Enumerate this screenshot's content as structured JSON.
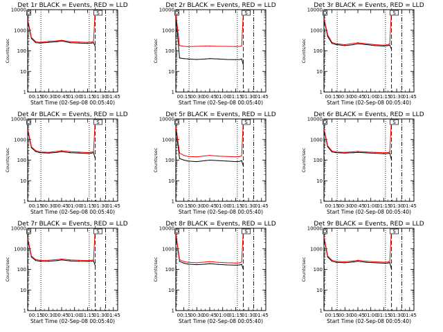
{
  "figure": {
    "x_axis_title": "Start Time (02-Sep-08 00:05:40)",
    "y_axis_title": "Counts/sec",
    "x_tick_labels": [
      "00:15",
      "00:30",
      "00:45",
      "01:00",
      "01:15",
      "01:30",
      "01:45"
    ],
    "y_tick_labels": [
      "1",
      "10",
      "100",
      "1000",
      "10000"
    ],
    "corner_markers": [
      "D",
      "S"
    ],
    "colors": {
      "events": "#000000",
      "lld": "#ff0000",
      "axes": "#000000"
    }
  },
  "chart_data": [
    {
      "type": "line",
      "title": "Det 1r BLACK = Events, RED = LLD",
      "xlabel": "Start Time (02-Sep-08 00:05:40)",
      "ylabel": "Counts/sec",
      "y_scale": "log",
      "ylim": [
        1,
        10000
      ],
      "xlim_minutes": [
        5.67,
        110
      ],
      "x": [
        "00:06",
        "00:10",
        "00:15",
        "00:20",
        "00:30",
        "00:40",
        "00:45",
        "00:55",
        "01:05",
        "01:15",
        "01:20",
        "01:22",
        "01:24"
      ],
      "series": [
        {
          "name": "Events",
          "color": "#000000",
          "values": [
            2500,
            400,
            250,
            240,
            260,
            280,
            300,
            250,
            240,
            230,
            240,
            250,
            160
          ]
        },
        {
          "name": "LLD",
          "color": "#ff0000",
          "values": [
            3000,
            450,
            280,
            260,
            290,
            310,
            330,
            280,
            270,
            260,
            270,
            290,
            12000
          ]
        }
      ],
      "vlines": [
        {
          "time": "00:06",
          "style": "dashed"
        },
        {
          "time": "00:21",
          "style": "dotted"
        },
        {
          "time": "01:17",
          "style": "dotted"
        },
        {
          "time": "01:24",
          "style": "dashed"
        },
        {
          "time": "01:36",
          "style": "dashdot"
        }
      ]
    },
    {
      "type": "line",
      "title": "Det 2r BLACK = Events, RED = LLD",
      "xlabel": "Start Time (02-Sep-08 00:05:40)",
      "ylabel": "Counts/sec",
      "y_scale": "log",
      "ylim": [
        1,
        10000
      ],
      "xlim_minutes": [
        5.67,
        110
      ],
      "x": [
        "00:06",
        "00:10",
        "00:15",
        "00:20",
        "00:30",
        "00:40",
        "00:45",
        "00:55",
        "01:05",
        "01:15",
        "01:20",
        "01:22",
        "01:24"
      ],
      "series": [
        {
          "name": "Events",
          "color": "#000000",
          "values": [
            4000,
            45,
            42,
            40,
            38,
            40,
            42,
            40,
            38,
            37,
            38,
            40,
            20
          ]
        },
        {
          "name": "LLD",
          "color": "#ff0000",
          "values": [
            5000,
            180,
            165,
            160,
            165,
            170,
            170,
            165,
            165,
            162,
            165,
            170,
            9000
          ]
        }
      ],
      "vlines": [
        {
          "time": "00:06",
          "style": "dashed"
        },
        {
          "time": "00:21",
          "style": "dotted"
        },
        {
          "time": "01:17",
          "style": "dotted"
        },
        {
          "time": "01:24",
          "style": "dashed"
        },
        {
          "time": "01:36",
          "style": "dashdot"
        }
      ]
    },
    {
      "type": "line",
      "title": "Det 3r BLACK = Events, RED = LLD",
      "xlabel": "Start Time (02-Sep-08 00:05:40)",
      "ylabel": "Counts/sec",
      "y_scale": "log",
      "ylim": [
        1,
        10000
      ],
      "xlim_minutes": [
        5.67,
        110
      ],
      "x": [
        "00:06",
        "00:10",
        "00:15",
        "00:20",
        "00:30",
        "00:40",
        "00:45",
        "00:55",
        "01:05",
        "01:15",
        "01:20",
        "01:22",
        "01:24"
      ],
      "series": [
        {
          "name": "Events",
          "color": "#000000",
          "values": [
            3000,
            500,
            230,
            200,
            180,
            200,
            220,
            200,
            180,
            170,
            180,
            190,
            120
          ]
        },
        {
          "name": "LLD",
          "color": "#ff0000",
          "values": [
            3500,
            600,
            260,
            220,
            200,
            230,
            250,
            220,
            200,
            190,
            200,
            220,
            11000
          ]
        }
      ],
      "vlines": [
        {
          "time": "00:06",
          "style": "dashed"
        },
        {
          "time": "00:21",
          "style": "dotted"
        },
        {
          "time": "01:17",
          "style": "dotted"
        },
        {
          "time": "01:24",
          "style": "dashed"
        },
        {
          "time": "01:36",
          "style": "dashdot"
        }
      ]
    },
    {
      "type": "line",
      "title": "Det 4r BLACK = Events, RED = LLD",
      "xlabel": "Start Time (02-Sep-08 00:05:40)",
      "ylabel": "Counts/sec",
      "y_scale": "log",
      "ylim": [
        1,
        10000
      ],
      "xlim_minutes": [
        5.67,
        110
      ],
      "x": [
        "00:06",
        "00:10",
        "00:15",
        "00:20",
        "00:30",
        "00:40",
        "00:45",
        "00:55",
        "01:05",
        "01:15",
        "01:20",
        "01:22",
        "01:24"
      ],
      "series": [
        {
          "name": "Events",
          "color": "#000000",
          "values": [
            2500,
            400,
            260,
            230,
            220,
            240,
            260,
            230,
            220,
            210,
            220,
            230,
            120
          ]
        },
        {
          "name": "LLD",
          "color": "#ff0000",
          "values": [
            3000,
            450,
            290,
            250,
            240,
            270,
            290,
            260,
            245,
            235,
            245,
            260,
            11000
          ]
        }
      ],
      "vlines": [
        {
          "time": "00:06",
          "style": "dashed"
        },
        {
          "time": "00:21",
          "style": "dotted"
        },
        {
          "time": "01:17",
          "style": "dotted"
        },
        {
          "time": "01:24",
          "style": "dashed"
        },
        {
          "time": "01:36",
          "style": "dashdot"
        }
      ]
    },
    {
      "type": "line",
      "title": "Det 5r BLACK = Events, RED = LLD",
      "xlabel": "Start Time (02-Sep-08 00:05:40)",
      "ylabel": "Counts/sec",
      "y_scale": "log",
      "ylim": [
        1,
        10000
      ],
      "xlim_minutes": [
        5.67,
        110
      ],
      "x": [
        "00:06",
        "00:10",
        "00:15",
        "00:20",
        "00:30",
        "00:40",
        "00:45",
        "00:55",
        "01:05",
        "01:15",
        "01:20",
        "01:22",
        "01:24"
      ],
      "series": [
        {
          "name": "Events",
          "color": "#000000",
          "values": [
            3000,
            120,
            100,
            90,
            85,
            95,
            100,
            95,
            90,
            85,
            88,
            95,
            50
          ]
        },
        {
          "name": "LLD",
          "color": "#ff0000",
          "values": [
            4000,
            220,
            170,
            150,
            145,
            160,
            170,
            155,
            150,
            145,
            150,
            160,
            10000
          ]
        }
      ],
      "vlines": [
        {
          "time": "00:06",
          "style": "dashed"
        },
        {
          "time": "00:21",
          "style": "dotted"
        },
        {
          "time": "01:17",
          "style": "dotted"
        },
        {
          "time": "01:24",
          "style": "dashed"
        },
        {
          "time": "01:36",
          "style": "dashdot"
        }
      ]
    },
    {
      "type": "line",
      "title": "Det 6r BLACK = Events, RED = LLD",
      "xlabel": "Start Time (02-Sep-08 00:05:40)",
      "ylabel": "Counts/sec",
      "y_scale": "log",
      "ylim": [
        1,
        10000
      ],
      "xlim_minutes": [
        5.67,
        110
      ],
      "x": [
        "00:06",
        "00:10",
        "00:15",
        "00:20",
        "00:30",
        "00:40",
        "00:45",
        "00:55",
        "01:05",
        "01:15",
        "01:20",
        "01:22",
        "01:24"
      ],
      "series": [
        {
          "name": "Events",
          "color": "#000000",
          "values": [
            2500,
            450,
            250,
            230,
            220,
            230,
            240,
            225,
            215,
            205,
            210,
            220,
            100
          ]
        },
        {
          "name": "LLD",
          "color": "#ff0000",
          "values": [
            3000,
            500,
            280,
            250,
            240,
            255,
            265,
            250,
            240,
            230,
            235,
            250,
            11000
          ]
        }
      ],
      "vlines": [
        {
          "time": "00:06",
          "style": "dashed"
        },
        {
          "time": "00:21",
          "style": "dotted"
        },
        {
          "time": "01:17",
          "style": "dotted"
        },
        {
          "time": "01:24",
          "style": "dashed"
        },
        {
          "time": "01:36",
          "style": "dashdot"
        }
      ]
    },
    {
      "type": "line",
      "title": "Det 7r BLACK = Events, RED = LLD",
      "xlabel": "Start Time (02-Sep-08 00:05:40)",
      "ylabel": "Counts/sec",
      "y_scale": "log",
      "ylim": [
        1,
        10000
      ],
      "xlim_minutes": [
        5.67,
        110
      ],
      "x": [
        "00:06",
        "00:10",
        "00:15",
        "00:20",
        "00:30",
        "00:40",
        "00:45",
        "00:55",
        "01:05",
        "01:15",
        "01:20",
        "01:22",
        "01:24"
      ],
      "series": [
        {
          "name": "Events",
          "color": "#000000",
          "values": [
            2500,
            400,
            270,
            250,
            250,
            270,
            290,
            260,
            250,
            245,
            250,
            260,
            150
          ]
        },
        {
          "name": "LLD",
          "color": "#ff0000",
          "values": [
            3000,
            450,
            300,
            275,
            280,
            300,
            320,
            290,
            280,
            270,
            280,
            290,
            12000
          ]
        }
      ],
      "vlines": [
        {
          "time": "00:06",
          "style": "dashed"
        },
        {
          "time": "00:21",
          "style": "dotted"
        },
        {
          "time": "01:17",
          "style": "dotted"
        },
        {
          "time": "01:24",
          "style": "dashed"
        },
        {
          "time": "01:36",
          "style": "dashdot"
        }
      ]
    },
    {
      "type": "line",
      "title": "Det 8r BLACK = Events, RED = LLD",
      "xlabel": "Start Time (02-Sep-08 00:05:40)",
      "ylabel": "Counts/sec",
      "y_scale": "log",
      "ylim": [
        1,
        10000
      ],
      "xlim_minutes": [
        5.67,
        110
      ],
      "x": [
        "00:06",
        "00:10",
        "00:15",
        "00:20",
        "00:30",
        "00:40",
        "00:45",
        "00:55",
        "01:05",
        "01:15",
        "01:20",
        "01:22",
        "01:24"
      ],
      "series": [
        {
          "name": "Events",
          "color": "#000000",
          "values": [
            4000,
            250,
            200,
            180,
            170,
            180,
            190,
            175,
            165,
            160,
            165,
            175,
            100
          ]
        },
        {
          "name": "LLD",
          "color": "#ff0000",
          "values": [
            5000,
            300,
            240,
            220,
            210,
            230,
            240,
            220,
            210,
            205,
            210,
            230,
            9000
          ]
        }
      ],
      "vlines": [
        {
          "time": "00:06",
          "style": "dashed"
        },
        {
          "time": "00:21",
          "style": "dotted"
        },
        {
          "time": "01:17",
          "style": "dotted"
        },
        {
          "time": "01:24",
          "style": "dashed"
        },
        {
          "time": "01:36",
          "style": "dashdot"
        }
      ]
    },
    {
      "type": "line",
      "title": "Det 9r BLACK = Events, RED = LLD",
      "xlabel": "Start Time (02-Sep-08 00:05:40)",
      "ylabel": "Counts/sec",
      "y_scale": "log",
      "ylim": [
        1,
        10000
      ],
      "xlim_minutes": [
        5.67,
        110
      ],
      "x": [
        "00:06",
        "00:10",
        "00:15",
        "00:20",
        "00:30",
        "00:40",
        "00:45",
        "00:55",
        "01:05",
        "01:15",
        "01:20",
        "01:22",
        "01:24"
      ],
      "series": [
        {
          "name": "Events",
          "color": "#000000",
          "values": [
            3000,
            400,
            250,
            220,
            210,
            230,
            250,
            220,
            210,
            200,
            205,
            215,
            100
          ]
        },
        {
          "name": "LLD",
          "color": "#ff0000",
          "values": [
            3500,
            450,
            280,
            245,
            235,
            260,
            280,
            250,
            235,
            225,
            230,
            245,
            10000
          ]
        }
      ],
      "vlines": [
        {
          "time": "00:06",
          "style": "dashed"
        },
        {
          "time": "00:21",
          "style": "dotted"
        },
        {
          "time": "01:17",
          "style": "dotted"
        },
        {
          "time": "01:24",
          "style": "dashed"
        },
        {
          "time": "01:36",
          "style": "dashdot"
        }
      ]
    }
  ]
}
